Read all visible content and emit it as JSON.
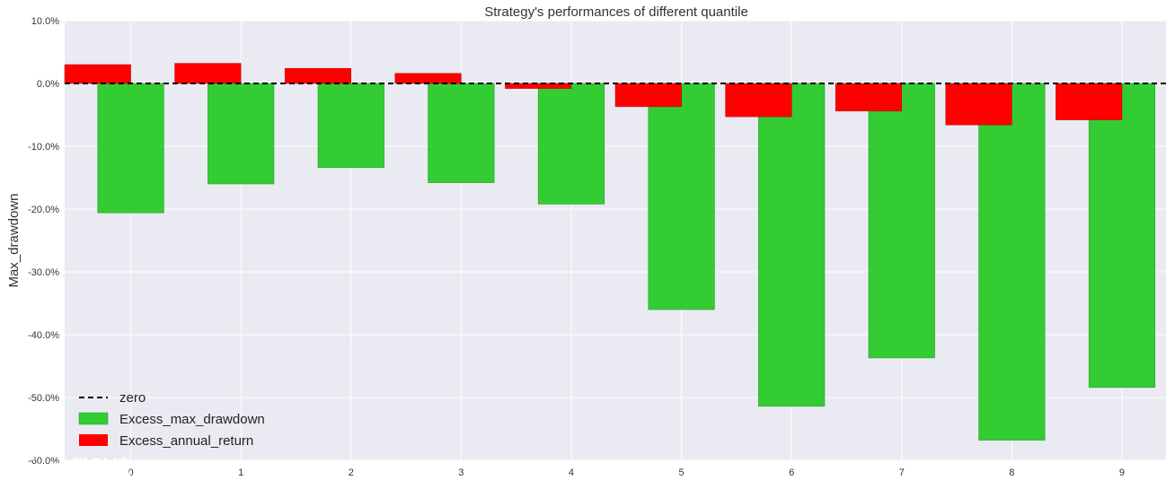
{
  "chart_data": {
    "type": "bar",
    "title": "Strategy's performances of different quantile",
    "xlabel": "",
    "ylabel": "Max_drawdown",
    "categories": [
      "0",
      "1",
      "2",
      "3",
      "4",
      "5",
      "6",
      "7",
      "8",
      "9"
    ],
    "ylim": [
      -60,
      10
    ],
    "yticks": [
      10,
      0,
      -10,
      -20,
      -30,
      -40,
      -50,
      -60
    ],
    "ytick_labels": [
      "10.0%",
      "0.0%",
      "-10.0%",
      "-20.0%",
      "-30.0%",
      "-40.0%",
      "-50.0%",
      "-60.0%"
    ],
    "grid": true,
    "legend_position": "lower-left",
    "series": [
      {
        "name": "Excess_max_drawdown",
        "color": "#33cc33",
        "values": [
          -20.6,
          -16.0,
          -13.4,
          -15.8,
          -19.2,
          -36.0,
          -51.4,
          -43.7,
          -56.8,
          -48.4
        ]
      },
      {
        "name": "Excess_annual_return",
        "color": "#ff0000",
        "values": [
          3.0,
          3.2,
          2.4,
          1.6,
          -0.8,
          -3.7,
          -5.3,
          -4.4,
          -6.6,
          -5.8
        ]
      }
    ],
    "reference_line": {
      "name": "zero",
      "value": 0,
      "style": "dashed",
      "color": "#000000"
    }
  },
  "watermark": {
    "text": "大数跨境",
    "icon": "brand-logo-icon"
  }
}
